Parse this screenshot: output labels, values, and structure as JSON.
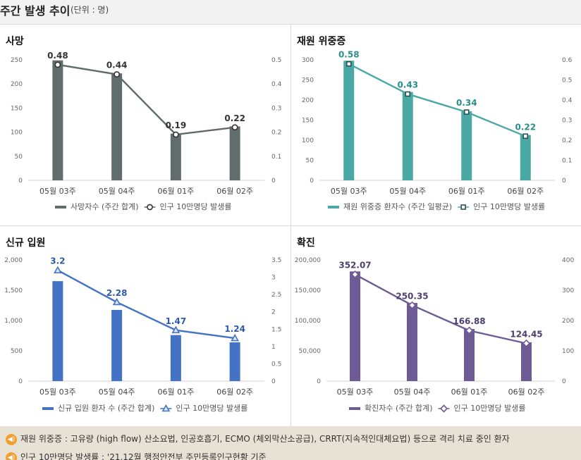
{
  "header": {
    "title": "주간 발생 추이",
    "unit": "(단위 : 명)"
  },
  "chart_data": [
    {
      "type": "bar",
      "title": "사망",
      "categories": [
        "05월 03주",
        "05월 04주",
        "06월 01주",
        "06월 02주"
      ],
      "series": [
        {
          "name": "사망자수 (주간 합계)",
          "kind": "bar",
          "axis": "left",
          "values": [
            249,
            222,
            97,
            112
          ]
        },
        {
          "name": "인구 10만명당 발생률",
          "kind": "line",
          "axis": "right",
          "values": [
            0.48,
            0.44,
            0.19,
            0.22
          ],
          "labels": [
            "0.48",
            "0.44",
            "0.19",
            "0.22"
          ]
        }
      ],
      "ylim": [
        0,
        250
      ],
      "yticks": [
        "0",
        "50",
        "100",
        "150",
        "200",
        "250"
      ],
      "y2lim": [
        0,
        0.5
      ],
      "y2ticks": [
        "0",
        "0.1",
        "0.2",
        "0.3",
        "0.4",
        "0.5"
      ],
      "color": "#616d6c",
      "marker": "circle"
    },
    {
      "type": "bar",
      "title": "재원 위중증",
      "categories": [
        "05월 03주",
        "05월 04주",
        "06월 01주",
        "06월 02주"
      ],
      "series": [
        {
          "name": "재원 위중증 환자수 (주간 일평균)",
          "kind": "bar",
          "axis": "left",
          "values": [
            298,
            220,
            172,
            113
          ]
        },
        {
          "name": "인구 10만명당 발생률",
          "kind": "line",
          "axis": "right",
          "values": [
            0.58,
            0.43,
            0.34,
            0.22
          ],
          "labels": [
            "0.58",
            "0.43",
            "0.34",
            "0.22"
          ]
        }
      ],
      "ylim": [
        0,
        300
      ],
      "yticks": [
        "0",
        "50",
        "100",
        "150",
        "200",
        "250",
        "300"
      ],
      "y2lim": [
        0,
        0.6
      ],
      "y2ticks": [
        "0",
        "0.1",
        "0.2",
        "0.3",
        "0.4",
        "0.5",
        "0.6"
      ],
      "color": "#4aa9a4",
      "marker": "square"
    },
    {
      "type": "bar",
      "title": "신규 입원",
      "categories": [
        "05월 03주",
        "05월 04주",
        "06월 01주",
        "06월 02주"
      ],
      "series": [
        {
          "name": "신규 입원 환자 수 (주간 합계)",
          "kind": "bar",
          "axis": "left",
          "values": [
            1650,
            1175,
            760,
            640
          ]
        },
        {
          "name": "인구 10만명당 발생률",
          "kind": "line",
          "axis": "right",
          "values": [
            3.2,
            2.28,
            1.47,
            1.24
          ],
          "labels": [
            "3.2",
            "2.28",
            "1.47",
            "1.24"
          ]
        }
      ],
      "ylim": [
        0,
        2000
      ],
      "yticks": [
        "0",
        "500",
        "1,000",
        "1,500",
        "2,000"
      ],
      "y2lim": [
        0,
        3.5
      ],
      "y2ticks": [
        "0",
        "0.5",
        "1",
        "1.5",
        "2",
        "2.5",
        "3",
        "3.5"
      ],
      "color": "#4472c4",
      "marker": "triangle"
    },
    {
      "type": "bar",
      "title": "확진",
      "categories": [
        "05월 03주",
        "05월 04주",
        "06월 01주",
        "06월 02주"
      ],
      "series": [
        {
          "name": "확진자수 (주간 합계)",
          "kind": "bar",
          "axis": "left",
          "values": [
            181000,
            129000,
            86000,
            64000
          ]
        },
        {
          "name": "인구 10만명당 발생률",
          "kind": "line",
          "axis": "right",
          "values": [
            352.07,
            250.35,
            166.88,
            124.45
          ],
          "labels": [
            "352.07",
            "250.35",
            "166.88",
            "124.45"
          ]
        }
      ],
      "ylim": [
        0,
        200000
      ],
      "yticks": [
        "0",
        "50,000",
        "100,000",
        "150,000",
        "200,000"
      ],
      "y2lim": [
        0,
        400
      ],
      "y2ticks": [
        "0",
        "100",
        "200",
        "300",
        "400"
      ],
      "color": "#6e5b95",
      "marker": "diamond"
    }
  ],
  "footer": {
    "notes": [
      "재원 위중증 : 고유량 (high flow) 산소요법, 인공호흡기, ECMO (체외막산소공급), CRRT(지속적인대체요법) 등으로 격리 치료 중인 환자",
      "인구 10만명당 발생률 : '21.12월 행정안전부 주민등록인구현황 기준"
    ]
  }
}
